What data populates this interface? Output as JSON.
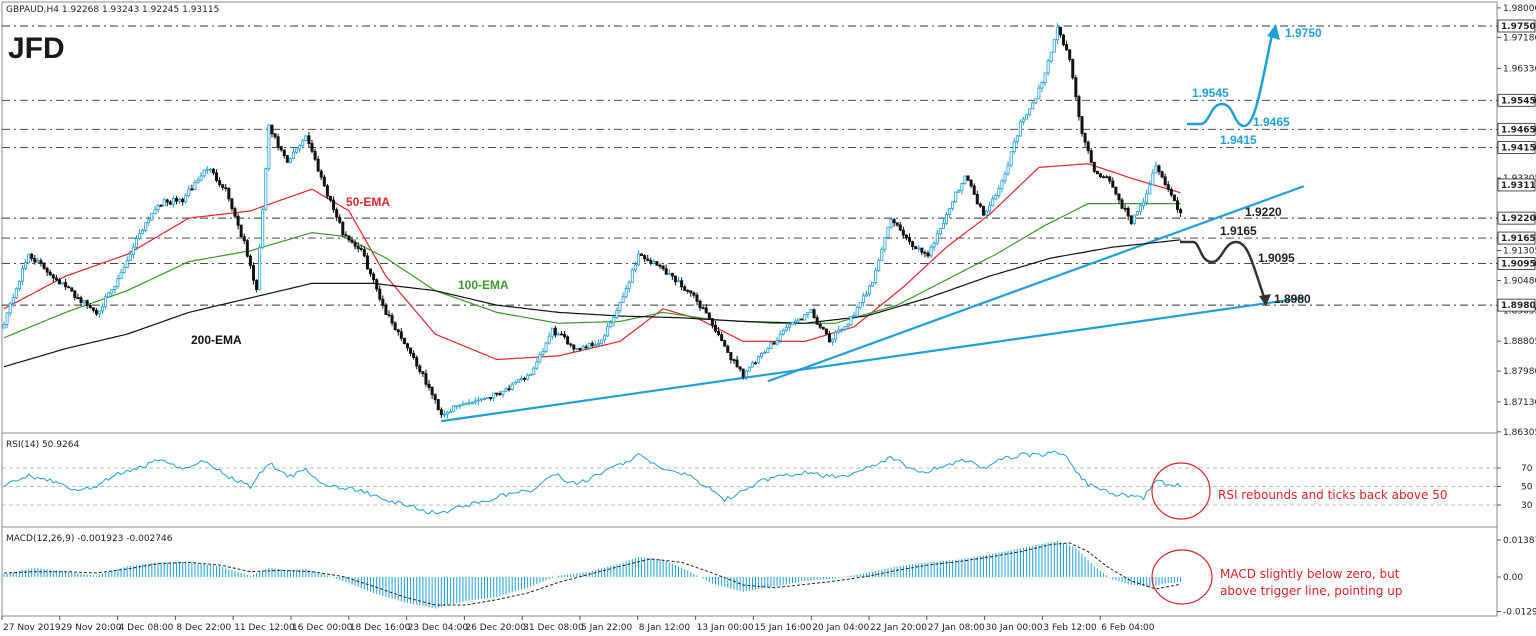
{
  "colors": {
    "bull": "#1f9fd6",
    "bear": "#111111",
    "ema50": "#e0262b",
    "ema100": "#3a9a2a",
    "ema200": "#111111",
    "trend": "#1f9fd6",
    "rsi": "#1f9fd6",
    "macd_hist": "#1f9fd6",
    "note": "#d9232a",
    "scenario_up": "#1f9fd6",
    "scenario_down": "#222222"
  },
  "logo": "JFD",
  "chart_data": [
    {
      "type": "candlestick",
      "title": "GBPAUD,H4 1.92268 1.93243 1.92245 1.93115",
      "ylim": [
        1.863,
        1.98
      ],
      "y_ticks": [
        "1.98000",
        "1.97180",
        "1.96330",
        "1.95450",
        "1.94650",
        "1.94150",
        "1.93305",
        "1.92200",
        "1.91305",
        "1.90950",
        "1.90480",
        "1.89655",
        "1.88805",
        "1.87980",
        "1.87130",
        "1.86305"
      ],
      "price_labels": [
        {
          "value": 1.975,
          "text": "1.97500"
        },
        {
          "value": 1.9545,
          "text": "1.95450"
        },
        {
          "value": 1.9465,
          "text": "1.94650"
        },
        {
          "value": 1.9415,
          "text": "1.94150"
        },
        {
          "value": 1.93115,
          "text": "1.93115"
        },
        {
          "value": 1.922,
          "text": "1.92200"
        },
        {
          "value": 1.9165,
          "text": "1.91650"
        },
        {
          "value": 1.9095,
          "text": "1.90950"
        },
        {
          "value": 1.898,
          "text": "1.89800"
        }
      ],
      "x_ticks": [
        "27 Nov 2019",
        "29 Nov 20:00",
        "4 Dec 08:00",
        "8 Dec 22:00",
        "11 Dec 12:00",
        "16 Dec 00:00",
        "18 Dec 16:00",
        "23 Dec 04:00",
        "26 Dec 20:00",
        "31 Dec 08:00",
        "5 Jan 22:00",
        "8 Jan 12:00",
        "13 Jan 00:00",
        "15 Jan 16:00",
        "20 Jan 04:00",
        "22 Jan 20:00",
        "27 Jan 08:00",
        "30 Jan 00:00",
        "3 Feb 12:00",
        "6 Feb 04:00"
      ],
      "close_anchors": [
        [
          0,
          1.8935
        ],
        [
          8,
          1.912
        ],
        [
          16,
          1.906
        ],
        [
          24,
          1.9
        ],
        [
          30,
          1.896
        ],
        [
          36,
          1.903
        ],
        [
          44,
          1.918
        ],
        [
          50,
          1.926
        ],
        [
          58,
          1.927
        ],
        [
          66,
          1.936
        ],
        [
          72,
          1.93
        ],
        [
          78,
          1.915
        ],
        [
          82,
          1.902
        ],
        [
          86,
          1.947
        ],
        [
          92,
          1.937
        ],
        [
          98,
          1.945
        ],
        [
          104,
          1.931
        ],
        [
          110,
          1.918
        ],
        [
          116,
          1.913
        ],
        [
          124,
          1.896
        ],
        [
          132,
          1.885
        ],
        [
          138,
          1.875
        ],
        [
          142,
          1.868
        ],
        [
          150,
          1.871
        ],
        [
          158,
          1.873
        ],
        [
          166,
          1.876
        ],
        [
          172,
          1.88
        ],
        [
          178,
          1.891
        ],
        [
          186,
          1.886
        ],
        [
          194,
          1.888
        ],
        [
          200,
          1.898
        ],
        [
          206,
          1.912
        ],
        [
          214,
          1.908
        ],
        [
          222,
          1.902
        ],
        [
          228,
          1.896
        ],
        [
          234,
          1.886
        ],
        [
          240,
          1.879
        ],
        [
          246,
          1.884
        ],
        [
          254,
          1.892
        ],
        [
          262,
          1.896
        ],
        [
          268,
          1.888
        ],
        [
          276,
          1.895
        ],
        [
          282,
          1.905
        ],
        [
          288,
          1.922
        ],
        [
          294,
          1.915
        ],
        [
          300,
          1.912
        ],
        [
          306,
          1.923
        ],
        [
          312,
          1.934
        ],
        [
          318,
          1.923
        ],
        [
          324,
          1.932
        ],
        [
          330,
          1.948
        ],
        [
          334,
          1.953
        ],
        [
          338,
          1.962
        ],
        [
          342,
          1.9745
        ],
        [
          346,
          1.966
        ],
        [
          350,
          1.945
        ],
        [
          354,
          1.935
        ],
        [
          358,
          1.933
        ],
        [
          362,
          1.927
        ],
        [
          366,
          1.921
        ],
        [
          370,
          1.927
        ],
        [
          374,
          1.936
        ],
        [
          378,
          1.93
        ],
        [
          382,
          1.9231
        ]
      ],
      "ema_anchors": {
        "ema50": [
          [
            0,
            1.897
          ],
          [
            20,
            1.906
          ],
          [
            40,
            1.912
          ],
          [
            60,
            1.922
          ],
          [
            80,
            1.924
          ],
          [
            100,
            1.93
          ],
          [
            112,
            1.924
          ],
          [
            124,
            1.906
          ],
          [
            140,
            1.89
          ],
          [
            160,
            1.883
          ],
          [
            180,
            1.884
          ],
          [
            200,
            1.888
          ],
          [
            214,
            1.897
          ],
          [
            226,
            1.894
          ],
          [
            240,
            1.888
          ],
          [
            260,
            1.888
          ],
          [
            276,
            1.892
          ],
          [
            292,
            1.903
          ],
          [
            306,
            1.914
          ],
          [
            320,
            1.923
          ],
          [
            336,
            1.936
          ],
          [
            352,
            1.937
          ],
          [
            366,
            1.933
          ],
          [
            382,
            1.929
          ]
        ],
        "ema100": [
          [
            0,
            1.889
          ],
          [
            20,
            1.896
          ],
          [
            40,
            1.902
          ],
          [
            60,
            1.91
          ],
          [
            80,
            1.913
          ],
          [
            100,
            1.918
          ],
          [
            110,
            1.917
          ],
          [
            124,
            1.911
          ],
          [
            140,
            1.902
          ],
          [
            160,
            1.896
          ],
          [
            180,
            1.893
          ],
          [
            200,
            1.8935
          ],
          [
            214,
            1.896
          ],
          [
            230,
            1.894
          ],
          [
            250,
            1.893
          ],
          [
            270,
            1.893
          ],
          [
            290,
            1.898
          ],
          [
            306,
            1.905
          ],
          [
            322,
            1.912
          ],
          [
            338,
            1.92
          ],
          [
            352,
            1.926
          ],
          [
            366,
            1.926
          ],
          [
            382,
            1.926
          ]
        ],
        "ema200": [
          [
            0,
            1.881
          ],
          [
            20,
            1.886
          ],
          [
            40,
            1.89
          ],
          [
            60,
            1.896
          ],
          [
            80,
            1.9
          ],
          [
            100,
            1.904
          ],
          [
            120,
            1.904
          ],
          [
            140,
            1.902
          ],
          [
            160,
            1.898
          ],
          [
            180,
            1.896
          ],
          [
            200,
            1.895
          ],
          [
            220,
            1.8945
          ],
          [
            240,
            1.8935
          ],
          [
            260,
            1.893
          ],
          [
            280,
            1.895
          ],
          [
            300,
            1.9
          ],
          [
            320,
            1.906
          ],
          [
            340,
            1.911
          ],
          [
            360,
            1.914
          ],
          [
            382,
            1.916
          ]
        ]
      },
      "trendlines": [
        {
          "from_bar": 142,
          "from": 1.866,
          "to_bar": 422,
          "to": 1.9
        },
        {
          "from_bar": 248,
          "from": 1.877,
          "to_bar": 422,
          "to": 1.9308
        }
      ],
      "levels": [
        1.975,
        1.9545,
        1.9465,
        1.9415,
        1.922,
        1.9165,
        1.9095,
        1.898
      ],
      "annotations": [
        "50-EMA",
        "100-EMA",
        "200-EMA",
        "1.9750",
        "1.9545",
        "1.9465",
        "1.9415",
        "1.9220",
        "1.9165",
        "1.9095",
        "1.8980"
      ]
    },
    {
      "type": "line",
      "title": "RSI(14) 50.9264",
      "ylim": [
        10,
        90
      ],
      "y_ticks": [
        70,
        50,
        30
      ],
      "y_tick_labels": [
        "70",
        "50",
        "30"
      ],
      "dashed_levels": [
        70,
        50,
        30
      ],
      "anchors": [
        [
          0,
          50
        ],
        [
          8,
          62
        ],
        [
          16,
          55
        ],
        [
          24,
          45
        ],
        [
          30,
          50
        ],
        [
          36,
          62
        ],
        [
          44,
          70
        ],
        [
          50,
          78
        ],
        [
          58,
          70
        ],
        [
          66,
          78
        ],
        [
          72,
          62
        ],
        [
          80,
          50
        ],
        [
          86,
          76
        ],
        [
          92,
          60
        ],
        [
          98,
          68
        ],
        [
          104,
          52
        ],
        [
          110,
          48
        ],
        [
          116,
          46
        ],
        [
          124,
          34
        ],
        [
          132,
          30
        ],
        [
          138,
          22
        ],
        [
          142,
          22
        ],
        [
          150,
          30
        ],
        [
          158,
          36
        ],
        [
          166,
          44
        ],
        [
          172,
          46
        ],
        [
          178,
          64
        ],
        [
          186,
          52
        ],
        [
          194,
          64
        ],
        [
          200,
          74
        ],
        [
          206,
          84
        ],
        [
          214,
          68
        ],
        [
          222,
          62
        ],
        [
          228,
          50
        ],
        [
          234,
          36
        ],
        [
          240,
          44
        ],
        [
          246,
          56
        ],
        [
          254,
          62
        ],
        [
          262,
          66
        ],
        [
          268,
          60
        ],
        [
          276,
          64
        ],
        [
          282,
          72
        ],
        [
          288,
          82
        ],
        [
          294,
          70
        ],
        [
          300,
          66
        ],
        [
          306,
          74
        ],
        [
          312,
          78
        ],
        [
          318,
          70
        ],
        [
          324,
          80
        ],
        [
          330,
          84
        ],
        [
          336,
          84
        ],
        [
          342,
          88
        ],
        [
          346,
          78
        ],
        [
          350,
          58
        ],
        [
          354,
          48
        ],
        [
          360,
          42
        ],
        [
          366,
          40
        ],
        [
          370,
          38
        ],
        [
          374,
          58
        ],
        [
          378,
          50
        ],
        [
          382,
          51
        ]
      ],
      "annotation": "RSI rebounds and ticks back above 50"
    },
    {
      "type": "bar+line",
      "title": "MACD(12,26,9) -0.001923 -0.002746",
      "ylim": [
        -0.0135,
        0.0145
      ],
      "y_ticks": [
        "0.013872",
        "0.00",
        "-0.012945"
      ],
      "y_tick_values": [
        0.013872,
        0,
        -0.012945
      ],
      "hist_anchors": [
        [
          0,
          0.001
        ],
        [
          10,
          0.0035
        ],
        [
          20,
          0.002
        ],
        [
          30,
          0.0005
        ],
        [
          40,
          0.004
        ],
        [
          50,
          0.0055
        ],
        [
          60,
          0.0055
        ],
        [
          70,
          0.004
        ],
        [
          80,
          0.0005
        ],
        [
          86,
          0.0035
        ],
        [
          92,
          0.0025
        ],
        [
          98,
          0.003
        ],
        [
          104,
          0.001
        ],
        [
          110,
          -0.0015
        ],
        [
          120,
          -0.006
        ],
        [
          130,
          -0.0095
        ],
        [
          140,
          -0.0118
        ],
        [
          150,
          -0.009
        ],
        [
          160,
          -0.0075
        ],
        [
          170,
          -0.004
        ],
        [
          180,
          0.0005
        ],
        [
          190,
          0.002
        ],
        [
          200,
          0.005
        ],
        [
          206,
          0.0075
        ],
        [
          214,
          0.0065
        ],
        [
          222,
          0.0025
        ],
        [
          230,
          -0.0025
        ],
        [
          240,
          -0.0055
        ],
        [
          250,
          -0.0035
        ],
        [
          260,
          -0.0015
        ],
        [
          270,
          -0.0005
        ],
        [
          280,
          0.0015
        ],
        [
          290,
          0.004
        ],
        [
          300,
          0.0055
        ],
        [
          310,
          0.0065
        ],
        [
          320,
          0.0085
        ],
        [
          330,
          0.0108
        ],
        [
          342,
          0.0135
        ],
        [
          348,
          0.011
        ],
        [
          354,
          0.004
        ],
        [
          360,
          -0.001
        ],
        [
          366,
          -0.0028
        ],
        [
          372,
          -0.0038
        ],
        [
          378,
          -0.0022
        ],
        [
          382,
          -0.0019
        ]
      ],
      "signal_anchors": [
        [
          0,
          0.0015
        ],
        [
          10,
          0.002
        ],
        [
          20,
          0.002
        ],
        [
          30,
          0.0015
        ],
        [
          40,
          0.003
        ],
        [
          50,
          0.005
        ],
        [
          60,
          0.0055
        ],
        [
          70,
          0.0045
        ],
        [
          80,
          0.002
        ],
        [
          90,
          0.0025
        ],
        [
          100,
          0.002
        ],
        [
          110,
          0.0002
        ],
        [
          120,
          -0.0035
        ],
        [
          130,
          -0.0075
        ],
        [
          140,
          -0.0105
        ],
        [
          150,
          -0.0105
        ],
        [
          160,
          -0.0085
        ],
        [
          170,
          -0.006
        ],
        [
          180,
          -0.002
        ],
        [
          190,
          0.001
        ],
        [
          200,
          0.004
        ],
        [
          210,
          0.0068
        ],
        [
          220,
          0.0055
        ],
        [
          230,
          0.0015
        ],
        [
          240,
          -0.003
        ],
        [
          250,
          -0.004
        ],
        [
          260,
          -0.0028
        ],
        [
          270,
          -0.0015
        ],
        [
          280,
          0.0002
        ],
        [
          290,
          0.0025
        ],
        [
          300,
          0.0045
        ],
        [
          310,
          0.0058
        ],
        [
          320,
          0.0075
        ],
        [
          330,
          0.0095
        ],
        [
          340,
          0.0122
        ],
        [
          346,
          0.0128
        ],
        [
          352,
          0.0095
        ],
        [
          358,
          0.004
        ],
        [
          366,
          -0.0015
        ],
        [
          374,
          -0.0045
        ],
        [
          382,
          -0.0027
        ]
      ],
      "annotation": [
        "MACD slightly below zero, but",
        "above trigger line, pointing up"
      ]
    }
  ]
}
